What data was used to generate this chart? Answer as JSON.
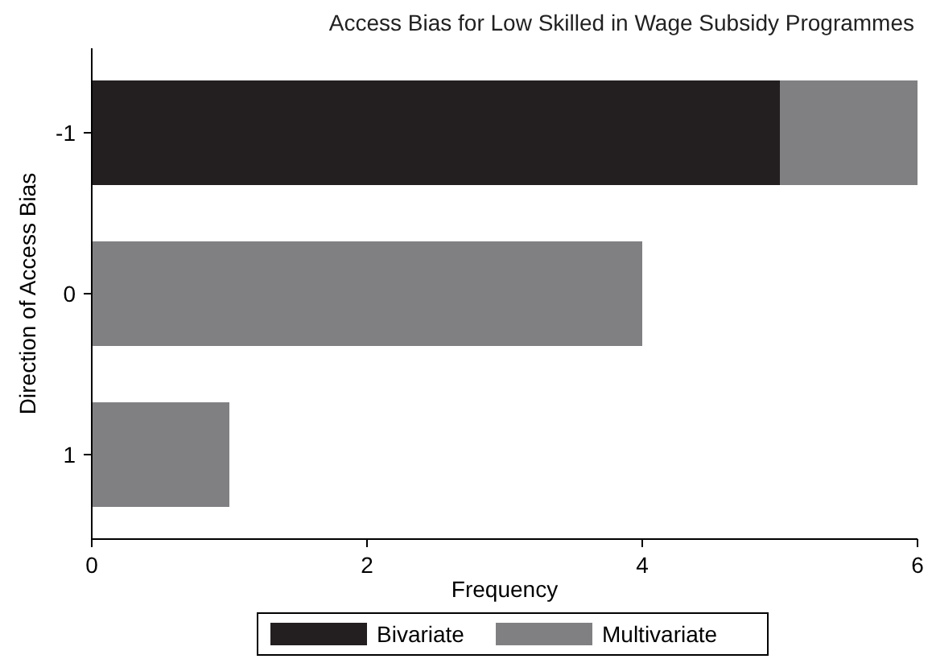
{
  "chart_data": {
    "type": "bar",
    "orientation": "horizontal",
    "stacked": true,
    "title": "Access Bias for Low Skilled in Wage Subsidy Programmes",
    "xlabel": "Frequency",
    "ylabel": "Direction of Access Bias",
    "categories": [
      "-1",
      "0",
      "1"
    ],
    "series": [
      {
        "name": "Bivariate",
        "color": "#231f20",
        "values": [
          5,
          0,
          0
        ]
      },
      {
        "name": "Multivariate",
        "color": "#808083",
        "values": [
          1,
          4,
          1
        ]
      }
    ],
    "xlim": [
      0,
      6
    ],
    "xticks": [
      0,
      2,
      4,
      6
    ],
    "legend": "bottom"
  }
}
